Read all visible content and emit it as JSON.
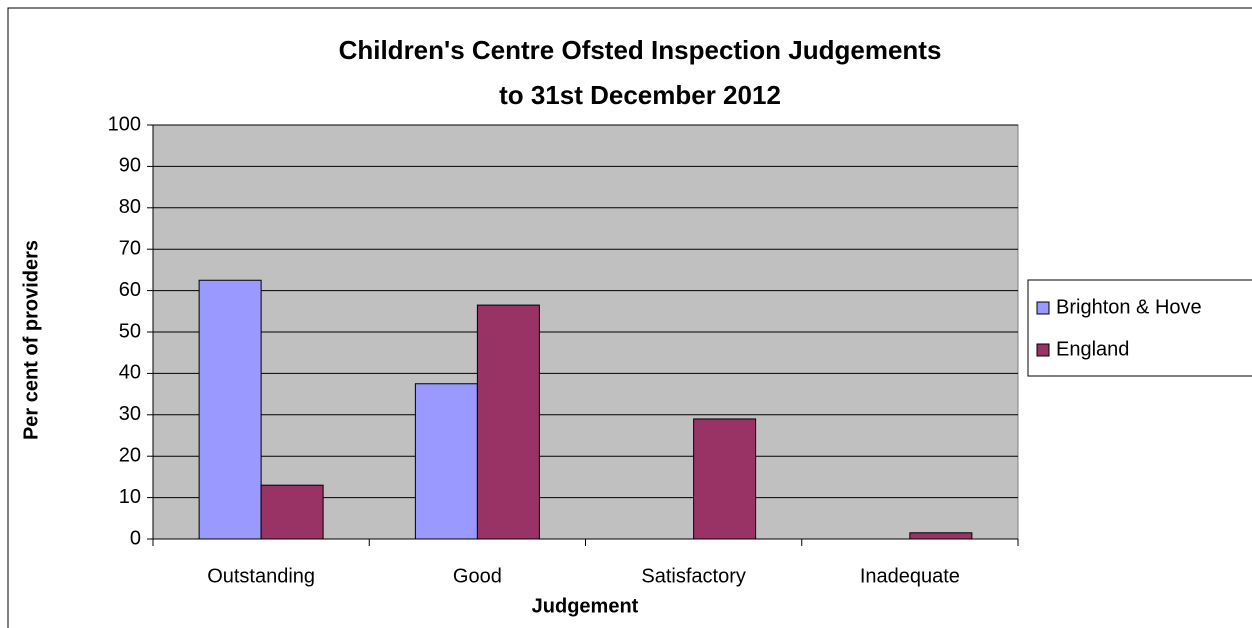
{
  "chart_data": {
    "type": "bar",
    "title": [
      "Children's Centre Ofsted Inspection Judgements",
      "to 31st December 2012"
    ],
    "x_label": "Judgement",
    "y_label": "Per cent of providers",
    "categories": [
      "Outstanding",
      "Good",
      "Satisfactory",
      "Inadequate"
    ],
    "series": [
      {
        "name": "Brighton & Hove",
        "color": "#9999ff",
        "values": [
          62.5,
          37.5,
          0,
          0
        ]
      },
      {
        "name": "England",
        "color": "#993366",
        "values": [
          13,
          56.5,
          29,
          1.5
        ]
      }
    ],
    "ylim": [
      0,
      100
    ],
    "yticks": [
      0,
      10,
      20,
      30,
      40,
      50,
      60,
      70,
      80,
      90,
      100
    ],
    "grid": true,
    "legend": "right",
    "plot_background": "#c0c0c0"
  }
}
